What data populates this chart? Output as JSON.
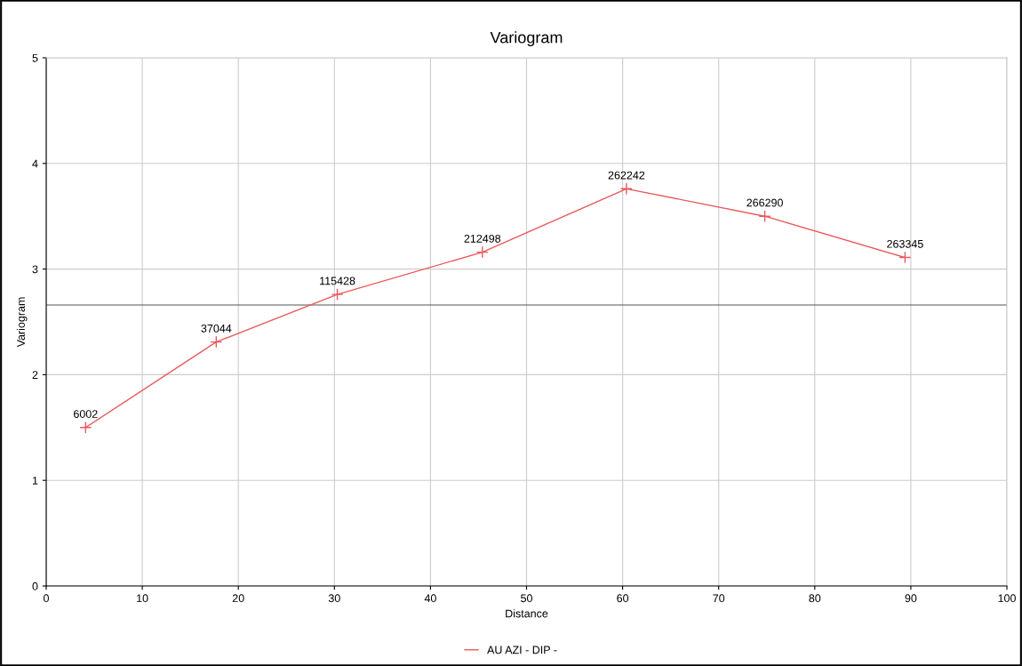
{
  "chart_data": {
    "type": "line",
    "title": "Variogram",
    "xlabel": "Distance",
    "ylabel": "Variogram",
    "x": [
      4.1,
      17.7,
      30.3,
      45.4,
      60.4,
      74.8,
      89.4
    ],
    "series": [
      {
        "name": "AU AZI - DIP -",
        "color": "#e8595c",
        "values": [
          1.5,
          2.31,
          2.76,
          3.16,
          3.76,
          3.5,
          3.11
        ]
      }
    ],
    "annotations": [
      {
        "text": "6002",
        "x": 4.1,
        "y": 1.5
      },
      {
        "text": "37044",
        "x": 17.7,
        "y": 2.31
      },
      {
        "text": "115428",
        "x": 30.3,
        "y": 2.76
      },
      {
        "text": "212498",
        "x": 45.4,
        "y": 3.16
      },
      {
        "text": "262242",
        "x": 60.4,
        "y": 3.76
      },
      {
        "text": "266290",
        "x": 74.8,
        "y": 3.5
      },
      {
        "text": "263345",
        "x": 89.4,
        "y": 3.11
      }
    ],
    "xlim": [
      0,
      100
    ],
    "xticks": [
      0,
      10,
      20,
      30,
      40,
      50,
      60,
      70,
      80,
      90,
      100
    ],
    "ylim": [
      0,
      5
    ],
    "yticks": [
      0,
      1,
      2,
      3,
      4,
      5
    ],
    "ref_lines": [
      {
        "axis": "y",
        "value": 2.66,
        "color": "#555555"
      }
    ],
    "grid": true,
    "legend": "bottom",
    "marker": "cross",
    "line_style": "solid"
  }
}
